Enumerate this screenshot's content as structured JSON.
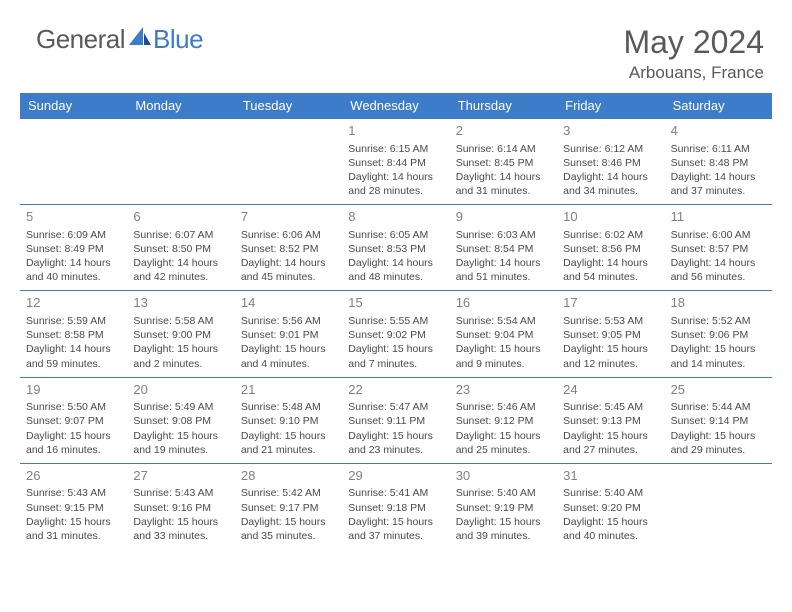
{
  "logo": {
    "text1": "General",
    "text2": "Blue"
  },
  "title": {
    "month": "May 2024",
    "location": "Arbouans, France"
  },
  "weekdays": [
    "Sunday",
    "Monday",
    "Tuesday",
    "Wednesday",
    "Thursday",
    "Friday",
    "Saturday"
  ],
  "colors": {
    "accent": "#3d7cc9",
    "text_muted": "#595959",
    "cell_text": "#4a4a4a",
    "daynum": "#808080"
  },
  "blank_leading": 3,
  "days": [
    {
      "n": "1",
      "sunrise": "6:15 AM",
      "sunset": "8:44 PM",
      "dl1": "Daylight: 14 hours",
      "dl2": "and 28 minutes."
    },
    {
      "n": "2",
      "sunrise": "6:14 AM",
      "sunset": "8:45 PM",
      "dl1": "Daylight: 14 hours",
      "dl2": "and 31 minutes."
    },
    {
      "n": "3",
      "sunrise": "6:12 AM",
      "sunset": "8:46 PM",
      "dl1": "Daylight: 14 hours",
      "dl2": "and 34 minutes."
    },
    {
      "n": "4",
      "sunrise": "6:11 AM",
      "sunset": "8:48 PM",
      "dl1": "Daylight: 14 hours",
      "dl2": "and 37 minutes."
    },
    {
      "n": "5",
      "sunrise": "6:09 AM",
      "sunset": "8:49 PM",
      "dl1": "Daylight: 14 hours",
      "dl2": "and 40 minutes."
    },
    {
      "n": "6",
      "sunrise": "6:07 AM",
      "sunset": "8:50 PM",
      "dl1": "Daylight: 14 hours",
      "dl2": "and 42 minutes."
    },
    {
      "n": "7",
      "sunrise": "6:06 AM",
      "sunset": "8:52 PM",
      "dl1": "Daylight: 14 hours",
      "dl2": "and 45 minutes."
    },
    {
      "n": "8",
      "sunrise": "6:05 AM",
      "sunset": "8:53 PM",
      "dl1": "Daylight: 14 hours",
      "dl2": "and 48 minutes."
    },
    {
      "n": "9",
      "sunrise": "6:03 AM",
      "sunset": "8:54 PM",
      "dl1": "Daylight: 14 hours",
      "dl2": "and 51 minutes."
    },
    {
      "n": "10",
      "sunrise": "6:02 AM",
      "sunset": "8:56 PM",
      "dl1": "Daylight: 14 hours",
      "dl2": "and 54 minutes."
    },
    {
      "n": "11",
      "sunrise": "6:00 AM",
      "sunset": "8:57 PM",
      "dl1": "Daylight: 14 hours",
      "dl2": "and 56 minutes."
    },
    {
      "n": "12",
      "sunrise": "5:59 AM",
      "sunset": "8:58 PM",
      "dl1": "Daylight: 14 hours",
      "dl2": "and 59 minutes."
    },
    {
      "n": "13",
      "sunrise": "5:58 AM",
      "sunset": "9:00 PM",
      "dl1": "Daylight: 15 hours",
      "dl2": "and 2 minutes."
    },
    {
      "n": "14",
      "sunrise": "5:56 AM",
      "sunset": "9:01 PM",
      "dl1": "Daylight: 15 hours",
      "dl2": "and 4 minutes."
    },
    {
      "n": "15",
      "sunrise": "5:55 AM",
      "sunset": "9:02 PM",
      "dl1": "Daylight: 15 hours",
      "dl2": "and 7 minutes."
    },
    {
      "n": "16",
      "sunrise": "5:54 AM",
      "sunset": "9:04 PM",
      "dl1": "Daylight: 15 hours",
      "dl2": "and 9 minutes."
    },
    {
      "n": "17",
      "sunrise": "5:53 AM",
      "sunset": "9:05 PM",
      "dl1": "Daylight: 15 hours",
      "dl2": "and 12 minutes."
    },
    {
      "n": "18",
      "sunrise": "5:52 AM",
      "sunset": "9:06 PM",
      "dl1": "Daylight: 15 hours",
      "dl2": "and 14 minutes."
    },
    {
      "n": "19",
      "sunrise": "5:50 AM",
      "sunset": "9:07 PM",
      "dl1": "Daylight: 15 hours",
      "dl2": "and 16 minutes."
    },
    {
      "n": "20",
      "sunrise": "5:49 AM",
      "sunset": "9:08 PM",
      "dl1": "Daylight: 15 hours",
      "dl2": "and 19 minutes."
    },
    {
      "n": "21",
      "sunrise": "5:48 AM",
      "sunset": "9:10 PM",
      "dl1": "Daylight: 15 hours",
      "dl2": "and 21 minutes."
    },
    {
      "n": "22",
      "sunrise": "5:47 AM",
      "sunset": "9:11 PM",
      "dl1": "Daylight: 15 hours",
      "dl2": "and 23 minutes."
    },
    {
      "n": "23",
      "sunrise": "5:46 AM",
      "sunset": "9:12 PM",
      "dl1": "Daylight: 15 hours",
      "dl2": "and 25 minutes."
    },
    {
      "n": "24",
      "sunrise": "5:45 AM",
      "sunset": "9:13 PM",
      "dl1": "Daylight: 15 hours",
      "dl2": "and 27 minutes."
    },
    {
      "n": "25",
      "sunrise": "5:44 AM",
      "sunset": "9:14 PM",
      "dl1": "Daylight: 15 hours",
      "dl2": "and 29 minutes."
    },
    {
      "n": "26",
      "sunrise": "5:43 AM",
      "sunset": "9:15 PM",
      "dl1": "Daylight: 15 hours",
      "dl2": "and 31 minutes."
    },
    {
      "n": "27",
      "sunrise": "5:43 AM",
      "sunset": "9:16 PM",
      "dl1": "Daylight: 15 hours",
      "dl2": "and 33 minutes."
    },
    {
      "n": "28",
      "sunrise": "5:42 AM",
      "sunset": "9:17 PM",
      "dl1": "Daylight: 15 hours",
      "dl2": "and 35 minutes."
    },
    {
      "n": "29",
      "sunrise": "5:41 AM",
      "sunset": "9:18 PM",
      "dl1": "Daylight: 15 hours",
      "dl2": "and 37 minutes."
    },
    {
      "n": "30",
      "sunrise": "5:40 AM",
      "sunset": "9:19 PM",
      "dl1": "Daylight: 15 hours",
      "dl2": "and 39 minutes."
    },
    {
      "n": "31",
      "sunrise": "5:40 AM",
      "sunset": "9:20 PM",
      "dl1": "Daylight: 15 hours",
      "dl2": "and 40 minutes."
    }
  ],
  "labels": {
    "sunrise_prefix": "Sunrise: ",
    "sunset_prefix": "Sunset: "
  }
}
